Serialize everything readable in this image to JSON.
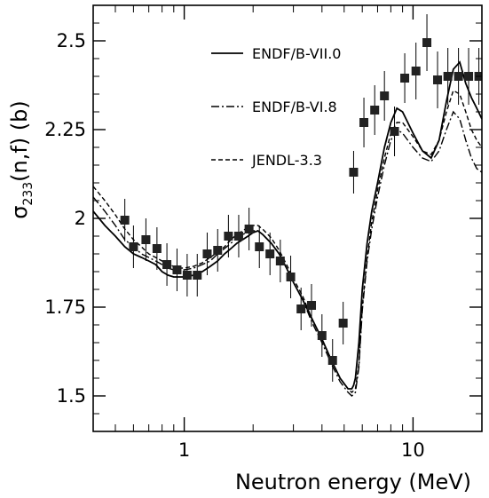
{
  "chart_data": {
    "type": "scatter",
    "xlabel": "Neutron energy (MeV)",
    "ylabel_main": "σ",
    "ylabel_sub": "233",
    "ylabel_rest": "(n,f) (b)",
    "xscale": "log",
    "xlim": [
      0.4,
      20
    ],
    "ylim": [
      1.4,
      2.6
    ],
    "x_ticks": [
      {
        "value": 1,
        "label": "1"
      },
      {
        "value": 10,
        "label": "10"
      }
    ],
    "y_ticks": [
      {
        "value": 1.5,
        "label": "1.5"
      },
      {
        "value": 1.75,
        "label": "1.75"
      },
      {
        "value": 2.0,
        "label": "2"
      },
      {
        "value": 2.25,
        "label": "2.25"
      },
      {
        "value": 2.5,
        "label": "2.5"
      }
    ],
    "legend_position": "top-right",
    "series": [
      {
        "name": "ENDF/B-VII.0",
        "style": "solid",
        "x": [
          0.4,
          0.45,
          0.5,
          0.55,
          0.6,
          0.65,
          0.7,
          0.75,
          0.8,
          0.85,
          0.9,
          0.95,
          1.0,
          1.1,
          1.2,
          1.3,
          1.4,
          1.5,
          1.6,
          1.7,
          1.8,
          1.9,
          2.0,
          2.1,
          2.2,
          2.4,
          2.6,
          2.8,
          3.0,
          3.3,
          3.6,
          4.0,
          4.4,
          4.8,
          5.2,
          5.4,
          5.5,
          5.6,
          5.8,
          6.0,
          6.3,
          6.6,
          7.0,
          7.5,
          8.0,
          8.5,
          9.0,
          10.0,
          11.0,
          12.0,
          13.0,
          14.0,
          15.0,
          16.0,
          17.0,
          18.0,
          19.0,
          20.0
        ],
        "y": [
          2.02,
          1.98,
          1.95,
          1.92,
          1.9,
          1.89,
          1.88,
          1.87,
          1.85,
          1.84,
          1.835,
          1.835,
          1.835,
          1.84,
          1.85,
          1.865,
          1.88,
          1.9,
          1.915,
          1.93,
          1.94,
          1.95,
          1.96,
          1.965,
          1.955,
          1.93,
          1.9,
          1.86,
          1.82,
          1.77,
          1.72,
          1.66,
          1.6,
          1.55,
          1.52,
          1.52,
          1.53,
          1.55,
          1.65,
          1.8,
          1.93,
          2.02,
          2.1,
          2.2,
          2.27,
          2.31,
          2.3,
          2.24,
          2.19,
          2.17,
          2.22,
          2.33,
          2.42,
          2.44,
          2.38,
          2.34,
          2.31,
          2.28
        ]
      },
      {
        "name": "ENDF/B-VI.8",
        "style": "dash-dot",
        "x": [
          0.4,
          0.45,
          0.5,
          0.55,
          0.6,
          0.65,
          0.7,
          0.75,
          0.8,
          0.85,
          0.9,
          0.95,
          1.0,
          1.1,
          1.2,
          1.3,
          1.4,
          1.5,
          1.6,
          1.7,
          1.8,
          1.9,
          2.0,
          2.1,
          2.2,
          2.4,
          2.6,
          2.8,
          3.0,
          3.3,
          3.6,
          4.0,
          4.4,
          4.8,
          5.2,
          5.4,
          5.6,
          5.8,
          6.0,
          6.3,
          6.6,
          7.0,
          7.5,
          8.0,
          8.5,
          9.0,
          10.0,
          11.0,
          12.0,
          13.0,
          14.0,
          15.0,
          16.0,
          17.0,
          18.0,
          19.0,
          20.0
        ],
        "y": [
          2.06,
          2.02,
          1.98,
          1.94,
          1.92,
          1.9,
          1.89,
          1.88,
          1.87,
          1.86,
          1.855,
          1.855,
          1.855,
          1.86,
          1.87,
          1.88,
          1.9,
          1.915,
          1.93,
          1.945,
          1.955,
          1.96,
          1.965,
          1.965,
          1.955,
          1.93,
          1.9,
          1.86,
          1.82,
          1.77,
          1.71,
          1.65,
          1.59,
          1.54,
          1.51,
          1.5,
          1.51,
          1.58,
          1.74,
          1.88,
          1.97,
          2.06,
          2.15,
          2.22,
          2.25,
          2.24,
          2.2,
          2.17,
          2.16,
          2.19,
          2.25,
          2.3,
          2.28,
          2.22,
          2.17,
          2.14,
          2.13
        ]
      },
      {
        "name": "JENDL-3.3",
        "style": "dashed",
        "x": [
          0.4,
          0.45,
          0.5,
          0.55,
          0.6,
          0.65,
          0.7,
          0.75,
          0.8,
          0.85,
          0.9,
          0.95,
          1.0,
          1.1,
          1.2,
          1.3,
          1.4,
          1.5,
          1.6,
          1.7,
          1.8,
          1.9,
          2.0,
          2.1,
          2.2,
          2.4,
          2.6,
          2.8,
          3.0,
          3.3,
          3.6,
          4.0,
          4.4,
          4.8,
          5.2,
          5.4,
          5.6,
          5.8,
          6.0,
          6.3,
          6.6,
          7.0,
          7.5,
          8.0,
          8.5,
          9.0,
          10.0,
          11.0,
          12.0,
          13.0,
          14.0,
          15.0,
          16.0,
          17.0,
          18.0,
          19.0,
          20.0
        ],
        "y": [
          2.09,
          2.05,
          2.01,
          1.97,
          1.94,
          1.92,
          1.9,
          1.89,
          1.88,
          1.87,
          1.865,
          1.86,
          1.86,
          1.865,
          1.875,
          1.89,
          1.905,
          1.92,
          1.94,
          1.955,
          1.965,
          1.975,
          1.98,
          1.98,
          1.97,
          1.945,
          1.91,
          1.87,
          1.83,
          1.78,
          1.72,
          1.66,
          1.6,
          1.55,
          1.52,
          1.51,
          1.52,
          1.59,
          1.75,
          1.89,
          1.99,
          2.08,
          2.17,
          2.24,
          2.27,
          2.27,
          2.23,
          2.19,
          2.18,
          2.22,
          2.3,
          2.36,
          2.35,
          2.3,
          2.25,
          2.22,
          2.2
        ]
      },
      {
        "name": "",
        "style": "markers",
        "x": [
          0.55,
          0.6,
          0.68,
          0.76,
          0.84,
          0.93,
          1.03,
          1.14,
          1.26,
          1.4,
          1.56,
          1.73,
          1.92,
          2.13,
          2.37,
          2.63,
          2.92,
          3.24,
          3.6,
          4.0,
          4.45,
          4.95,
          5.5,
          6.1,
          6.8,
          7.5,
          8.3,
          9.2,
          10.3,
          11.5,
          12.8,
          14.2,
          15.8,
          17.5,
          19.4
        ],
        "y": [
          1.995,
          1.92,
          1.94,
          1.915,
          1.87,
          1.855,
          1.84,
          1.84,
          1.9,
          1.91,
          1.95,
          1.95,
          1.97,
          1.92,
          1.9,
          1.88,
          1.835,
          1.745,
          1.755,
          1.67,
          1.6,
          1.705,
          2.13,
          2.27,
          2.305,
          2.345,
          2.245,
          2.395,
          2.415,
          2.495,
          2.39,
          2.4,
          2.4,
          2.4,
          2.4
        ],
        "yerr": [
          0.06,
          0.06,
          0.06,
          0.06,
          0.06,
          0.06,
          0.06,
          0.06,
          0.06,
          0.06,
          0.06,
          0.06,
          0.06,
          0.06,
          0.06,
          0.06,
          0.06,
          0.06,
          0.06,
          0.06,
          0.06,
          0.06,
          0.06,
          0.07,
          0.07,
          0.07,
          0.07,
          0.07,
          0.08,
          0.08,
          0.08,
          0.08,
          0.08,
          0.08,
          0.08
        ]
      }
    ]
  }
}
